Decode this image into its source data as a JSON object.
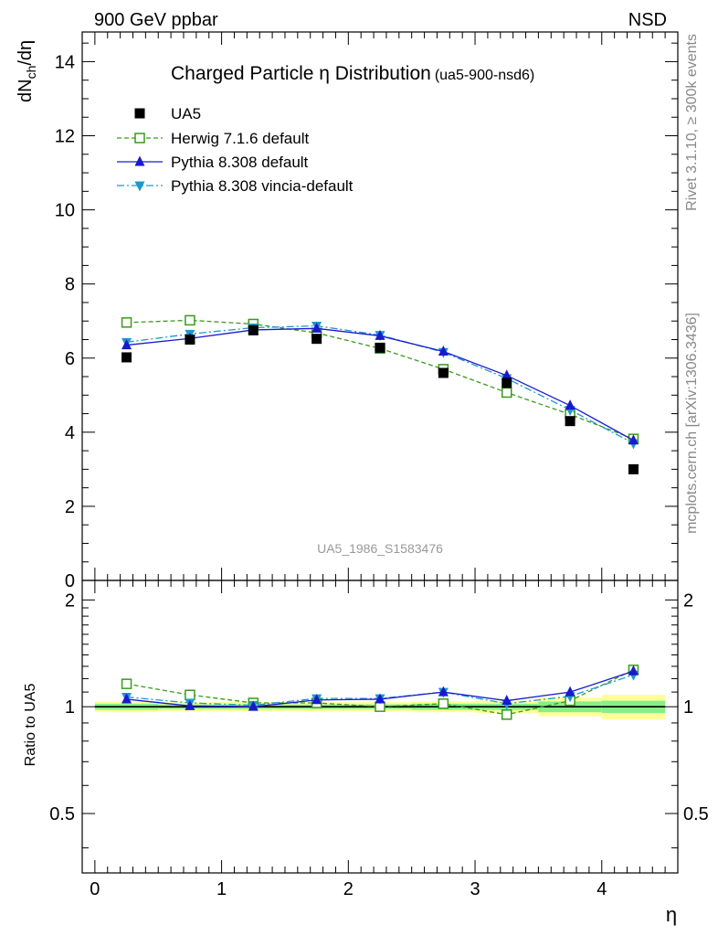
{
  "header": {
    "left": "900 GeV ppbar",
    "right": "NSD"
  },
  "side_labels": {
    "top": "Rivet 3.1.10, ≥ 300k events",
    "bottom": "mcplots.cern.ch [arXiv:1306.3436]"
  },
  "colors": {
    "data": "#000000",
    "herwig": "#3a9a1a",
    "pythia": "#1a1acc",
    "vincia": "#1a9acc",
    "band_yellow": "#ffff99",
    "band_green": "#88ee88"
  },
  "chart_data": [
    {
      "type": "scatter",
      "title": "Charged Particle η Distribution",
      "title_suffix": "(ua5-900-nsd6)",
      "ylabel_main": "dN",
      "ylabel_sub": "ch",
      "ylabel_rest": "/dη",
      "watermark": "UA5_1986_S1583476",
      "xlim": [
        -0.1,
        4.6
      ],
      "ylim": [
        0,
        14.8
      ],
      "yticks": [
        0,
        2,
        4,
        6,
        8,
        10,
        12,
        14
      ],
      "ytick_labels": [
        "0",
        "2",
        "4",
        "6",
        "8",
        "10",
        "12",
        "14"
      ],
      "x": [
        0.25,
        0.75,
        1.25,
        1.75,
        2.25,
        2.75,
        3.25,
        3.75,
        4.25
      ],
      "series": [
        {
          "name": "UA5",
          "marker": "square-filled",
          "color": "#000000",
          "values": [
            6.02,
            6.5,
            6.75,
            6.52,
            6.28,
            5.6,
            5.33,
            4.3,
            3.0
          ]
        },
        {
          "name": "Herwig 7.1.6 default",
          "marker": "square-open",
          "line": "dashed",
          "color": "#3a9a1a",
          "values": [
            6.96,
            7.02,
            6.92,
            6.68,
            6.26,
            5.7,
            5.07,
            4.48,
            3.82
          ]
        },
        {
          "name": "Pythia 8.308 default",
          "marker": "triangle-up",
          "line": "solid",
          "color": "#1a1acc",
          "values": [
            6.35,
            6.53,
            6.76,
            6.8,
            6.6,
            6.18,
            5.53,
            4.72,
            3.78
          ]
        },
        {
          "name": "Pythia 8.308 vincia-default",
          "marker": "triangle-down",
          "line": "dashdot",
          "color": "#1a9acc",
          "values": [
            6.43,
            6.65,
            6.82,
            6.87,
            6.62,
            6.16,
            5.45,
            4.6,
            3.7
          ]
        }
      ]
    },
    {
      "type": "line",
      "ylabel": "Ratio to UA5",
      "xlabel": "η",
      "xlim": [
        -0.1,
        4.6
      ],
      "ylim": [
        0.34,
        2.27
      ],
      "xticks": [
        0,
        1,
        2,
        3,
        4
      ],
      "xtick_labels": [
        "0",
        "1",
        "2",
        "3",
        "4"
      ],
      "yticks": [
        0.5,
        1,
        2
      ],
      "ytick_labels": [
        "0.5",
        "1",
        "2"
      ],
      "x": [
        0.25,
        0.75,
        1.25,
        1.75,
        2.25,
        2.75,
        3.25,
        3.75,
        4.25
      ],
      "band_edges": [
        0,
        0.5,
        1,
        1.5,
        2,
        2.5,
        3,
        3.5,
        4,
        4.5
      ],
      "band_stat": [
        0.02,
        0.015,
        0.015,
        0.015,
        0.015,
        0.02,
        0.02,
        0.035,
        0.04
      ],
      "band_total": [
        0.035,
        0.03,
        0.03,
        0.03,
        0.03,
        0.035,
        0.04,
        0.06,
        0.08
      ],
      "series": [
        {
          "name": "Herwig 7.1.6 default",
          "values": [
            1.16,
            1.08,
            1.025,
            1.025,
            1.0,
            1.02,
            0.95,
            1.04,
            1.27
          ]
        },
        {
          "name": "Pythia 8.308 default",
          "values": [
            1.05,
            1.005,
            1.0,
            1.045,
            1.05,
            1.1,
            1.04,
            1.1,
            1.26
          ]
        },
        {
          "name": "Pythia 8.308 vincia-default",
          "values": [
            1.065,
            1.025,
            1.01,
            1.055,
            1.055,
            1.1,
            1.02,
            1.07,
            1.23
          ]
        }
      ]
    }
  ]
}
